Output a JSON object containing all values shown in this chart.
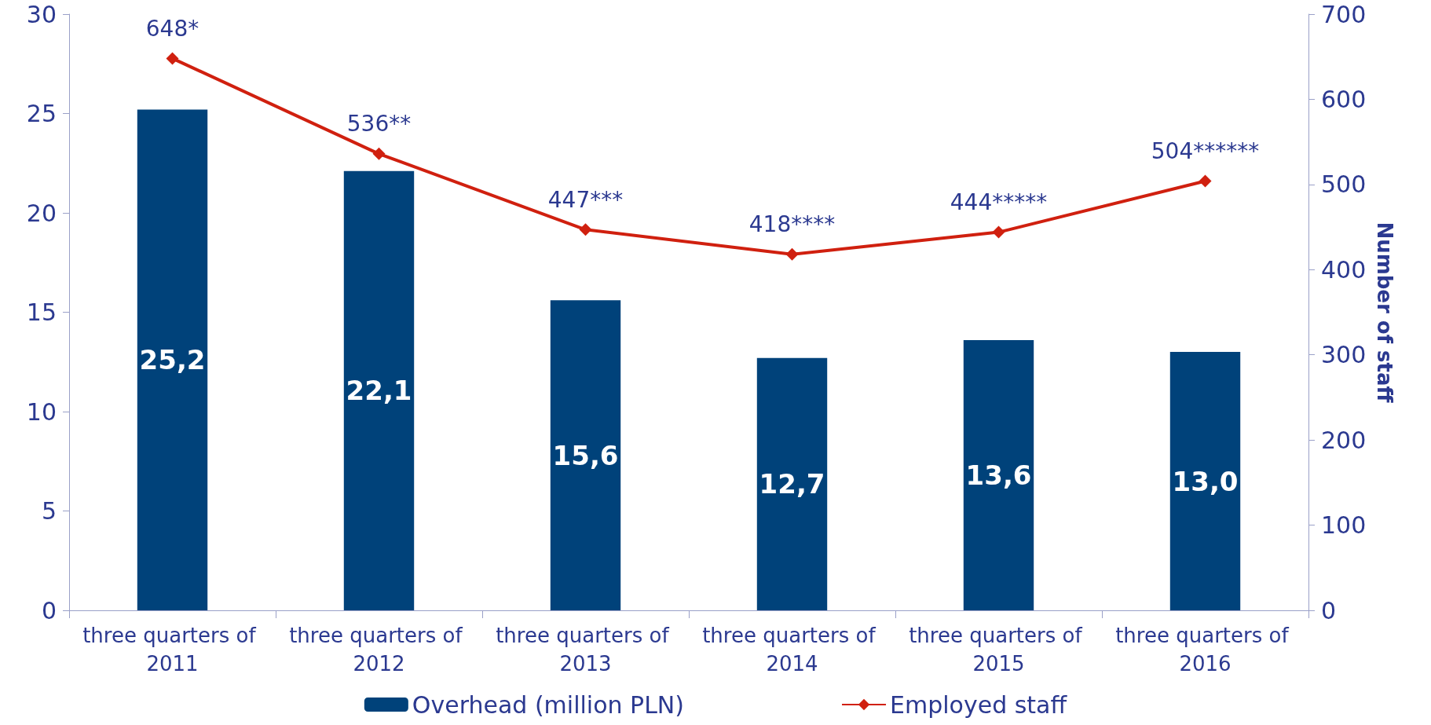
{
  "chart_data": {
    "type": "bar",
    "y2label": "Number of staff",
    "categories": [
      "three quarters of 2011",
      "three quarters of 2012",
      "three quarters of 2013",
      "three quarters of 2014",
      "three quarters of 2015",
      "three quarters of 2016"
    ],
    "series": [
      {
        "name": "Overhead (million PLN)",
        "color": "#00427a",
        "values": [
          25.2,
          22.1,
          15.6,
          12.7,
          13.6,
          13.0
        ],
        "value_labels": [
          "25,2",
          "22,1",
          "15,6",
          "12,7",
          "13,6",
          "13,0"
        ]
      },
      {
        "name": "Employed staff",
        "type": "line",
        "axis": "y2",
        "color": "#d0200f",
        "values": [
          648,
          536,
          447,
          418,
          444,
          504
        ],
        "value_labels": [
          "648*",
          "536**",
          "447***",
          "418****",
          "444*****",
          "504******"
        ]
      }
    ],
    "ylim": [
      0,
      30
    ],
    "yticks": [
      0,
      5,
      10,
      15,
      20,
      25,
      30
    ],
    "y2lim": [
      0,
      700
    ],
    "y2ticks": [
      0,
      100,
      200,
      300,
      400,
      500,
      600,
      700
    ],
    "grid": false,
    "legend": "bottom",
    "marker": "diamond",
    "line_style": "solid"
  }
}
